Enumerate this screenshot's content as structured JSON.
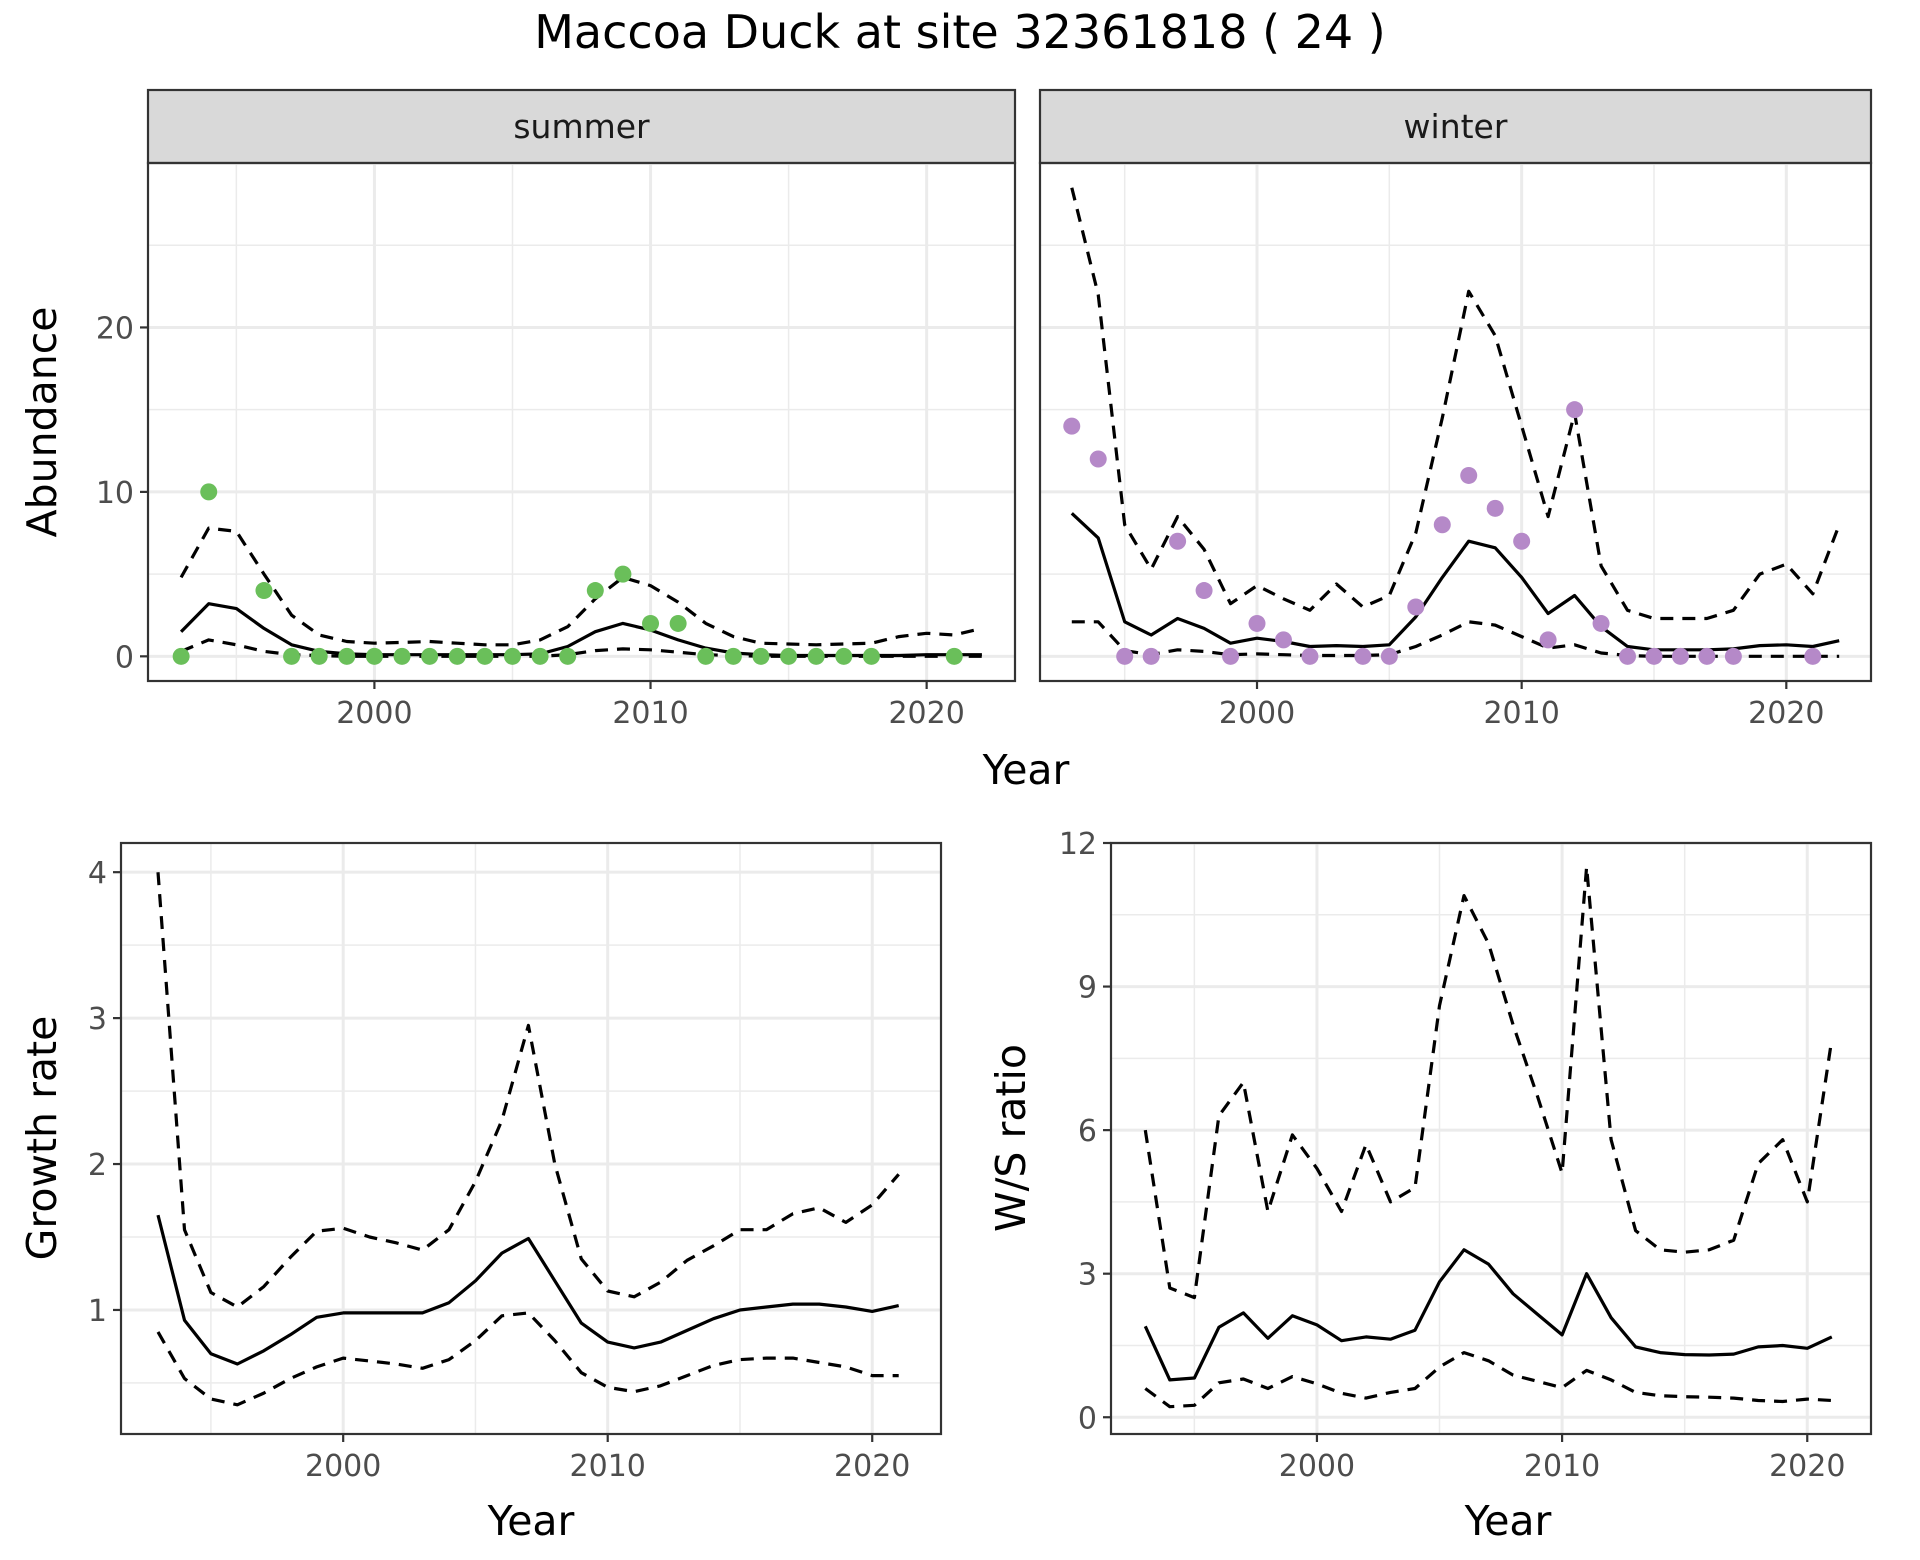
{
  "title": "Maccoa Duck at site 32361818 ( 24 )",
  "chart_data": [
    {
      "type": "line",
      "id": "abundance",
      "facets": [
        "summer",
        "winter"
      ],
      "xlabel": "Year",
      "ylabel": "Abundance",
      "xlim": [
        1991.8,
        2023.2
      ],
      "ylim": [
        -1.5,
        30
      ],
      "x_ticks": [
        2000,
        2010,
        2020
      ],
      "y_ticks": [
        0,
        10,
        20
      ],
      "grid": true,
      "panels": [
        {
          "facet": "summer",
          "point_color": "#6ABF5A",
          "observed": {
            "x": [
              1993,
              1994,
              1996,
              1997,
              1998,
              1999,
              2000,
              2001,
              2002,
              2003,
              2004,
              2005,
              2006,
              2007,
              2008,
              2009,
              2010,
              2011,
              2012,
              2013,
              2014,
              2015,
              2016,
              2017,
              2018,
              2021
            ],
            "y": [
              0,
              10,
              4,
              0,
              0,
              0,
              0,
              0,
              0,
              0,
              0,
              0,
              0,
              0,
              4,
              5,
              2,
              2,
              0,
              0,
              0,
              0,
              0,
              0,
              0,
              0
            ]
          },
          "series": [
            {
              "name": "",
              "style": "solid",
              "x": [
                1993,
                1994,
                1995,
                1996,
                1997,
                1998,
                1999,
                2000,
                2001,
                2002,
                2003,
                2004,
                2005,
                2006,
                2007,
                2008,
                2009,
                2010,
                2011,
                2012,
                2013,
                2014,
                2015,
                2016,
                2017,
                2018,
                2019,
                2020,
                2021,
                2022
              ],
              "y": [
                1.5,
                3.2,
                2.9,
                1.7,
                0.7,
                0.3,
                0.15,
                0.1,
                0.1,
                0.1,
                0.1,
                0.1,
                0.1,
                0.15,
                0.6,
                1.5,
                2.0,
                1.6,
                1.0,
                0.5,
                0.2,
                0.1,
                0.05,
                0.05,
                0.05,
                0.05,
                0.05,
                0.1,
                0.1,
                0.1
              ]
            },
            {
              "name": "",
              "style": "dashed",
              "x": [
                1993,
                1994,
                1995,
                1996,
                1997,
                1998,
                1999,
                2000,
                2001,
                2002,
                2003,
                2004,
                2005,
                2006,
                2007,
                2008,
                2009,
                2010,
                2011,
                2012,
                2013,
                2014,
                2015,
                2016,
                2017,
                2018,
                2019,
                2020,
                2021,
                2022
              ],
              "y": [
                4.8,
                7.8,
                7.6,
                5.0,
                2.5,
                1.3,
                0.9,
                0.8,
                0.85,
                0.9,
                0.8,
                0.7,
                0.7,
                1.0,
                1.8,
                3.5,
                4.8,
                4.3,
                3.3,
                2.0,
                1.2,
                0.8,
                0.75,
                0.7,
                0.75,
                0.8,
                1.2,
                1.4,
                1.3,
                1.7
              ]
            },
            {
              "name": "",
              "style": "dashed",
              "x": [
                1993,
                1994,
                1995,
                1996,
                1997,
                1998,
                1999,
                2000,
                2001,
                2002,
                2003,
                2004,
                2005,
                2006,
                2007,
                2008,
                2009,
                2010,
                2011,
                2012,
                2013,
                2014,
                2015,
                2016,
                2017,
                2018,
                2019,
                2020,
                2021,
                2022
              ],
              "y": [
                0.3,
                1.0,
                0.7,
                0.3,
                0.1,
                0.05,
                0,
                0,
                0,
                0,
                0,
                0,
                0,
                0,
                0.1,
                0.35,
                0.45,
                0.4,
                0.25,
                0.1,
                0.05,
                0,
                0,
                0,
                0,
                0,
                0,
                0,
                0,
                0
              ]
            }
          ]
        },
        {
          "facet": "winter",
          "point_color": "#B589C8",
          "observed": {
            "x": [
              1993,
              1994,
              1995,
              1996,
              1997,
              1998,
              1999,
              2000,
              2001,
              2002,
              2004,
              2005,
              2006,
              2007,
              2008,
              2009,
              2010,
              2011,
              2012,
              2013,
              2014,
              2015,
              2016,
              2017,
              2018,
              2021
            ],
            "y": [
              14,
              12,
              0,
              0,
              7,
              4,
              0,
              2,
              1,
              0,
              0,
              0,
              3,
              8,
              11,
              9,
              7,
              1,
              15,
              2,
              0,
              0,
              0,
              0,
              0,
              0
            ]
          },
          "series": [
            {
              "name": "",
              "style": "solid",
              "x": [
                1993,
                1994,
                1995,
                1996,
                1997,
                1998,
                1999,
                2000,
                2001,
                2002,
                2003,
                2004,
                2005,
                2006,
                2007,
                2008,
                2009,
                2010,
                2011,
                2012,
                2013,
                2014,
                2015,
                2016,
                2017,
                2018,
                2019,
                2020,
                2021,
                2022
              ],
              "y": [
                8.7,
                7.2,
                2.1,
                1.3,
                2.3,
                1.7,
                0.8,
                1.1,
                0.9,
                0.6,
                0.65,
                0.6,
                0.7,
                2.4,
                4.8,
                7.0,
                6.6,
                4.8,
                2.6,
                3.7,
                1.8,
                0.6,
                0.4,
                0.4,
                0.4,
                0.45,
                0.65,
                0.7,
                0.6,
                0.95
              ]
            },
            {
              "name": "",
              "style": "dashed",
              "x": [
                1993,
                1994,
                1995,
                1996,
                1997,
                1998,
                1999,
                2000,
                2001,
                2002,
                2003,
                2004,
                2005,
                2006,
                2007,
                2008,
                2009,
                2010,
                2011,
                2012,
                2013,
                2014,
                2015,
                2016,
                2017,
                2018,
                2019,
                2020,
                2021,
                2022
              ],
              "y": [
                28.5,
                22,
                8,
                5.3,
                8.5,
                6.5,
                3.2,
                4.3,
                3.5,
                2.8,
                4.4,
                3.0,
                3.7,
                7.5,
                14.5,
                22.2,
                19.5,
                14.0,
                8.5,
                14.8,
                5.5,
                2.8,
                2.3,
                2.3,
                2.3,
                2.8,
                5.0,
                5.6,
                3.8,
                8.0
              ]
            },
            {
              "name": "",
              "style": "dashed",
              "x": [
                1993,
                1994,
                1995,
                1996,
                1997,
                1998,
                1999,
                2000,
                2001,
                2002,
                2003,
                2004,
                2005,
                2006,
                2007,
                2008,
                2009,
                2010,
                2011,
                2012,
                2013,
                2014,
                2015,
                2016,
                2017,
                2018,
                2019,
                2020,
                2021,
                2022
              ],
              "y": [
                2.1,
                2.1,
                0.35,
                0.1,
                0.4,
                0.3,
                0.1,
                0.15,
                0.1,
                0.05,
                0.05,
                0.05,
                0.1,
                0.6,
                1.3,
                2.1,
                1.9,
                1.2,
                0.5,
                0.7,
                0.2,
                0.05,
                0,
                0,
                0,
                0,
                0,
                0,
                0,
                0
              ]
            }
          ]
        }
      ]
    },
    {
      "type": "line",
      "id": "growth",
      "xlabel": "Year",
      "ylabel": "Growth rate",
      "xlim": [
        1991.6,
        2022.6
      ],
      "ylim": [
        0.15,
        4.2
      ],
      "x_ticks": [
        2000,
        2010,
        2020
      ],
      "y_ticks": [
        1,
        2,
        3,
        4
      ],
      "grid": true,
      "series": [
        {
          "name": "",
          "style": "solid",
          "x": [
            1993,
            1994,
            1995,
            1996,
            1997,
            1998,
            1999,
            2000,
            2001,
            2002,
            2003,
            2004,
            2005,
            2006,
            2007,
            2008,
            2009,
            2010,
            2011,
            2012,
            2013,
            2014,
            2015,
            2016,
            2017,
            2018,
            2019,
            2020,
            2021
          ],
          "y": [
            1.65,
            0.93,
            0.7,
            0.63,
            0.72,
            0.83,
            0.95,
            0.98,
            0.98,
            0.98,
            0.98,
            1.05,
            1.2,
            1.39,
            1.49,
            1.2,
            0.91,
            0.78,
            0.74,
            0.78,
            0.86,
            0.94,
            1.0,
            1.02,
            1.04,
            1.04,
            1.02,
            0.99,
            1.03
          ]
        },
        {
          "name": "",
          "style": "dashed",
          "x": [
            1993,
            1994,
            1995,
            1996,
            1997,
            1998,
            1999,
            2000,
            2001,
            2002,
            2003,
            2004,
            2005,
            2006,
            2007,
            2008,
            2009,
            2010,
            2011,
            2012,
            2013,
            2014,
            2015,
            2016,
            2017,
            2018,
            2019,
            2020,
            2021
          ],
          "y": [
            4.0,
            1.55,
            1.12,
            1.02,
            1.16,
            1.36,
            1.54,
            1.56,
            1.5,
            1.46,
            1.41,
            1.55,
            1.88,
            2.3,
            2.95,
            2.0,
            1.35,
            1.13,
            1.09,
            1.19,
            1.34,
            1.44,
            1.55,
            1.55,
            1.66,
            1.7,
            1.6,
            1.72,
            1.93
          ]
        },
        {
          "name": "",
          "style": "dashed",
          "x": [
            1993,
            1994,
            1995,
            1996,
            1997,
            1998,
            1999,
            2000,
            2001,
            2002,
            2003,
            2004,
            2005,
            2006,
            2007,
            2008,
            2009,
            2010,
            2011,
            2012,
            2013,
            2014,
            2015,
            2016,
            2017,
            2018,
            2019,
            2020,
            2021
          ],
          "y": [
            0.85,
            0.53,
            0.39,
            0.35,
            0.43,
            0.53,
            0.61,
            0.67,
            0.65,
            0.63,
            0.6,
            0.66,
            0.79,
            0.96,
            0.98,
            0.79,
            0.57,
            0.47,
            0.44,
            0.48,
            0.55,
            0.62,
            0.66,
            0.67,
            0.67,
            0.64,
            0.61,
            0.55,
            0.55
          ]
        }
      ]
    },
    {
      "type": "line",
      "id": "ratio",
      "xlabel": "Year",
      "ylabel": "W/S ratio",
      "xlim": [
        1991.6,
        2022.6
      ],
      "ylim": [
        -0.35,
        12.0
      ],
      "x_ticks": [
        2000,
        2010,
        2020
      ],
      "y_ticks": [
        0,
        3,
        6,
        9,
        12
      ],
      "grid": true,
      "series": [
        {
          "name": "",
          "style": "solid",
          "x": [
            1993,
            1994,
            1995,
            1996,
            1997,
            1998,
            1999,
            2000,
            2001,
            2002,
            2003,
            2004,
            2005,
            2006,
            2007,
            2008,
            2009,
            2010,
            2011,
            2012,
            2013,
            2014,
            2015,
            2016,
            2017,
            2018,
            2019,
            2020,
            2021
          ],
          "y": [
            1.9,
            0.78,
            0.82,
            1.88,
            2.18,
            1.65,
            2.12,
            1.93,
            1.6,
            1.68,
            1.63,
            1.82,
            2.83,
            3.5,
            3.2,
            2.58,
            2.15,
            1.72,
            3.0,
            2.08,
            1.47,
            1.35,
            1.31,
            1.3,
            1.32,
            1.47,
            1.5,
            1.44,
            1.68
          ]
        },
        {
          "name": "",
          "style": "dashed",
          "x": [
            1993,
            1994,
            1995,
            1996,
            1997,
            1998,
            1999,
            2000,
            2001,
            2002,
            2003,
            2004,
            2005,
            2006,
            2007,
            2008,
            2009,
            2010,
            2011,
            2012,
            2013,
            2014,
            2015,
            2016,
            2017,
            2018,
            2019,
            2020,
            2021
          ],
          "y": [
            6.0,
            2.7,
            2.5,
            6.3,
            7.0,
            4.3,
            5.9,
            5.2,
            4.3,
            5.7,
            4.5,
            4.8,
            8.6,
            10.9,
            9.9,
            8.2,
            6.7,
            5.1,
            11.5,
            5.8,
            3.9,
            3.5,
            3.45,
            3.5,
            3.7,
            5.3,
            5.8,
            4.5,
            7.9
          ]
        },
        {
          "name": "",
          "style": "dashed",
          "x": [
            1993,
            1994,
            1995,
            1996,
            1997,
            1998,
            1999,
            2000,
            2001,
            2002,
            2003,
            2004,
            2005,
            2006,
            2007,
            2008,
            2009,
            2010,
            2011,
            2012,
            2013,
            2014,
            2015,
            2016,
            2017,
            2018,
            2019,
            2020,
            2021
          ],
          "y": [
            0.6,
            0.22,
            0.25,
            0.72,
            0.8,
            0.6,
            0.85,
            0.7,
            0.5,
            0.4,
            0.52,
            0.6,
            1.05,
            1.35,
            1.18,
            0.88,
            0.75,
            0.62,
            0.98,
            0.78,
            0.52,
            0.45,
            0.43,
            0.42,
            0.4,
            0.35,
            0.33,
            0.38,
            0.35
          ]
        }
      ]
    }
  ]
}
